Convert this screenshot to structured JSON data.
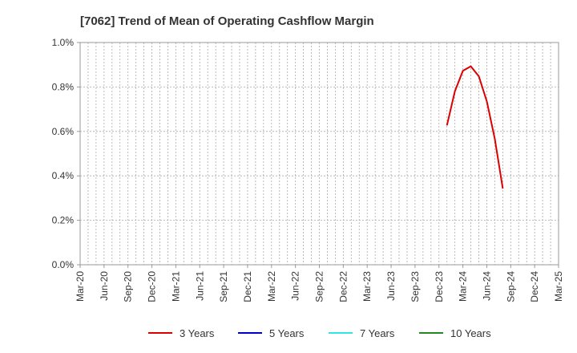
{
  "chart_data": {
    "type": "line",
    "title": "[7062]  Trend of Mean of Operating Cashflow Margin",
    "xlabel": "",
    "ylabel": "",
    "x_ticks": [
      "Mar-20",
      "Jun-20",
      "Sep-20",
      "Dec-20",
      "Mar-21",
      "Jun-21",
      "Sep-21",
      "Dec-21",
      "Mar-22",
      "Jun-22",
      "Sep-22",
      "Dec-22",
      "Mar-23",
      "Jun-23",
      "Sep-23",
      "Dec-23",
      "Mar-24",
      "Jun-24",
      "Sep-24",
      "Dec-24",
      "Mar-25"
    ],
    "y_ticks": [
      "0.0%",
      "0.2%",
      "0.4%",
      "0.6%",
      "0.8%",
      "1.0%"
    ],
    "ylim": [
      0,
      1.0
    ],
    "xlim": [
      "2020-03",
      "2025-03"
    ],
    "grid": true,
    "legend_position": "bottom",
    "series": [
      {
        "name": "3 Years",
        "color": "#dd0000",
        "points": [
          {
            "x": "2024-01",
            "y": 0.627
          },
          {
            "x": "2024-02",
            "y": 0.78
          },
          {
            "x": "2024-03",
            "y": 0.873
          },
          {
            "x": "2024-04",
            "y": 0.893
          },
          {
            "x": "2024-05",
            "y": 0.848
          },
          {
            "x": "2024-06",
            "y": 0.735
          },
          {
            "x": "2024-07",
            "y": 0.567
          },
          {
            "x": "2024-08",
            "y": 0.343
          }
        ]
      },
      {
        "name": "5 Years",
        "color": "#0000cc",
        "points": []
      },
      {
        "name": "7 Years",
        "color": "#33e6e6",
        "points": []
      },
      {
        "name": "10 Years",
        "color": "#228822",
        "points": []
      }
    ]
  }
}
